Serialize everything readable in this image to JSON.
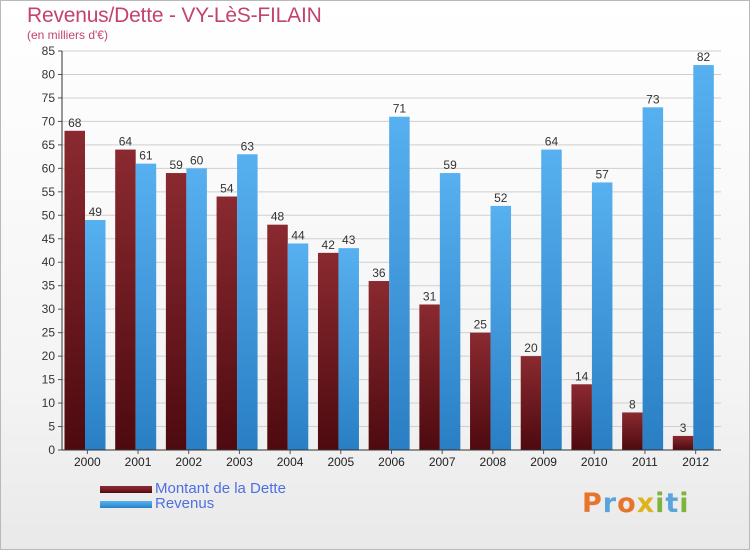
{
  "title": "Revenus/Dette - VY-LèS-FILAIN",
  "subtitle": "(en milliers d'€)",
  "colors": {
    "dette": "#7a1f25",
    "revenus": "#3f9ce0",
    "title": "#c3446b",
    "legend_text": "#4e6fe0"
  },
  "logo": {
    "text": "Proxiti",
    "letters": [
      {
        "char": "P",
        "color": "#e8732c"
      },
      {
        "char": "r",
        "color": "#5aa4dc"
      },
      {
        "char": "o",
        "color": "#e8732c"
      },
      {
        "char": "x",
        "color": "#e0b31c"
      },
      {
        "char": "i",
        "color": "#7fb33b"
      },
      {
        "char": "t",
        "color": "#5aa4dc"
      },
      {
        "char": "i",
        "color": "#7fb33b"
      }
    ]
  },
  "chart_data": {
    "type": "bar",
    "categories": [
      "2000",
      "2001",
      "2002",
      "2003",
      "2004",
      "2005",
      "2006",
      "2007",
      "2008",
      "2009",
      "2010",
      "2011",
      "2012"
    ],
    "series": [
      {
        "name": "Montant de la Dette",
        "values": [
          68,
          64,
          59,
          54,
          48,
          42,
          36,
          31,
          25,
          20,
          14,
          8,
          3
        ]
      },
      {
        "name": "Revenus",
        "values": [
          49,
          61,
          60,
          63,
          44,
          43,
          71,
          59,
          52,
          64,
          57,
          73,
          82
        ]
      }
    ],
    "yticks": [
      0,
      5,
      10,
      15,
      20,
      25,
      30,
      35,
      40,
      45,
      50,
      55,
      60,
      65,
      70,
      75,
      80,
      85
    ],
    "ylim": [
      0,
      85
    ],
    "grid": true,
    "legend_position": "bottom-left"
  }
}
